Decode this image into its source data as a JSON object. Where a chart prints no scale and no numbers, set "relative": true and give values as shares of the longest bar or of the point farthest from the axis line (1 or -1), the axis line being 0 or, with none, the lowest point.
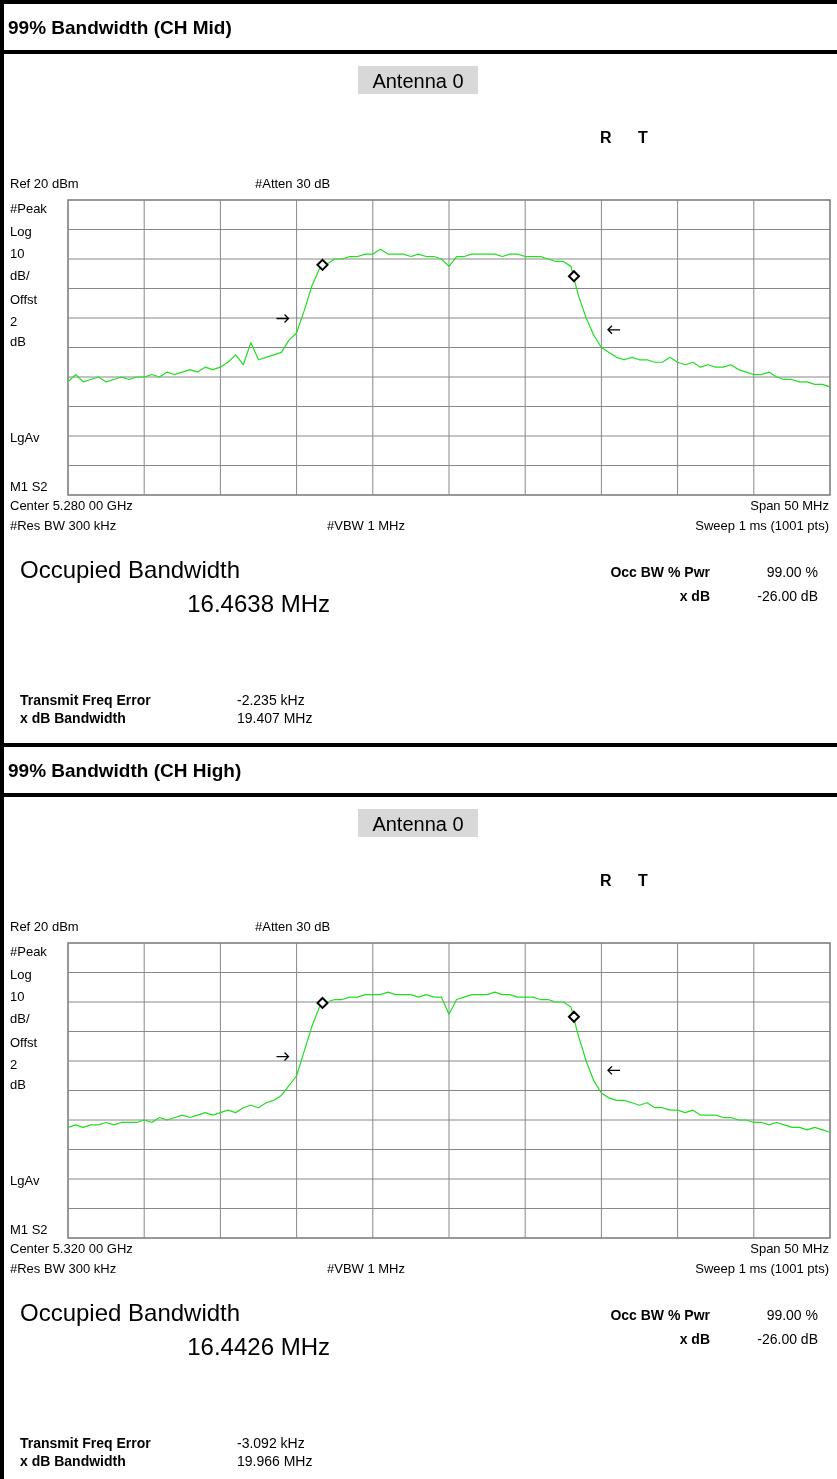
{
  "chart_data": [
    {
      "type": "line",
      "title": "99% Bandwidth (CH Mid)",
      "subtitle": "Antenna 0",
      "relative": true,
      "grid": true,
      "categories": [
        null,
        null,
        null,
        null,
        null,
        null,
        null,
        null,
        null,
        null,
        null,
        null,
        null,
        null,
        null,
        null,
        null,
        null,
        null,
        null,
        null,
        null,
        null,
        null,
        null,
        null,
        null,
        null,
        null,
        null,
        null,
        null,
        null,
        null,
        null,
        null,
        null,
        null,
        null,
        null,
        null,
        null,
        null,
        null,
        null,
        null,
        null,
        null,
        null,
        null,
        null,
        null,
        null,
        null,
        null,
        null,
        null,
        null,
        null,
        null,
        null,
        null,
        null,
        null,
        null,
        null,
        null,
        null,
        null,
        null,
        null,
        null,
        null,
        null,
        null,
        null,
        null,
        null,
        null,
        null,
        null,
        null,
        null,
        null,
        null,
        null,
        null,
        null,
        null,
        null,
        null,
        null,
        null,
        null,
        null,
        null,
        null,
        null,
        null,
        null,
        null
      ],
      "series": [
        {
          "color": "#22dd22",
          "values": [
            0.46,
            0.49,
            0.46,
            0.47,
            0.48,
            0.46,
            0.47,
            0.48,
            0.47,
            0.48,
            0.48,
            0.49,
            0.48,
            0.5,
            0.49,
            0.5,
            0.51,
            0.5,
            0.52,
            0.51,
            0.52,
            0.54,
            0.57,
            0.53,
            0.62,
            0.55,
            0.56,
            0.57,
            0.58,
            0.63,
            0.66,
            0.75,
            0.85,
            0.92,
            0.94,
            0.96,
            0.96,
            0.97,
            0.97,
            0.98,
            0.98,
            1,
            0.98,
            0.98,
            0.98,
            0.97,
            0.98,
            0.97,
            0.97,
            0.96,
            0.93,
            0.97,
            0.97,
            0.98,
            0.98,
            0.98,
            0.98,
            0.97,
            0.98,
            0.98,
            0.97,
            0.97,
            0.97,
            0.96,
            0.95,
            0.95,
            0.93,
            0.81,
            0.72,
            0.65,
            0.6,
            0.58,
            0.56,
            0.55,
            0.56,
            0.55,
            0.55,
            0.54,
            0.54,
            0.56,
            0.54,
            0.53,
            0.54,
            0.52,
            0.53,
            0.52,
            0.52,
            0.53,
            0.51,
            0.5,
            0.49,
            0.49,
            0.5,
            0.48,
            0.47,
            0.47,
            0.46,
            0.46,
            0.45,
            0.45,
            0.44
          ]
        }
      ],
      "annotations": [
        "R T",
        "Ref 20 dBm",
        "#Atten 30 dB",
        "#Peak",
        "Log",
        "10",
        "dB/",
        "Offst",
        "2",
        "dB",
        "LgAv",
        "M1 S2",
        "Center 5.280 00 GHz",
        "Span 50 MHz",
        "#Res BW 300 kHz",
        "#VBW 1 MHz",
        "Sweep 1 ms (1001 pts)",
        "Occupied Bandwidth",
        "16.4638 MHz",
        "Occ BW % Pwr",
        "99.00 %",
        "x dB",
        "-26.00 dB",
        "Transmit Freq Error",
        "-2.235 kHz",
        "x dB Bandwidth",
        "19.407 MHz"
      ]
    },
    {
      "type": "line",
      "title": "99% Bandwidth (CH High)",
      "subtitle": "Antenna 0",
      "relative": true,
      "grid": true,
      "categories": [
        null,
        null,
        null,
        null,
        null,
        null,
        null,
        null,
        null,
        null,
        null,
        null,
        null,
        null,
        null,
        null,
        null,
        null,
        null,
        null,
        null,
        null,
        null,
        null,
        null,
        null,
        null,
        null,
        null,
        null,
        null,
        null,
        null,
        null,
        null,
        null,
        null,
        null,
        null,
        null,
        null,
        null,
        null,
        null,
        null,
        null,
        null,
        null,
        null,
        null,
        null,
        null,
        null,
        null,
        null,
        null,
        null,
        null,
        null,
        null,
        null,
        null,
        null,
        null,
        null,
        null,
        null,
        null,
        null,
        null,
        null,
        null,
        null,
        null,
        null,
        null,
        null,
        null,
        null,
        null,
        null,
        null,
        null,
        null,
        null,
        null,
        null,
        null,
        null,
        null,
        null,
        null,
        null,
        null,
        null,
        null,
        null,
        null,
        null,
        null,
        null
      ],
      "series": [
        {
          "color": "#22dd22",
          "values": [
            0.45,
            0.46,
            0.45,
            0.46,
            0.46,
            0.47,
            0.46,
            0.47,
            0.47,
            0.47,
            0.48,
            0.47,
            0.49,
            0.48,
            0.49,
            0.5,
            0.49,
            0.5,
            0.51,
            0.5,
            0.51,
            0.52,
            0.51,
            0.53,
            0.54,
            0.53,
            0.55,
            0.56,
            0.58,
            0.62,
            0.66,
            0.76,
            0.86,
            0.94,
            0.96,
            0.97,
            0.97,
            0.98,
            0.98,
            0.99,
            0.99,
            0.99,
            1,
            0.99,
            0.99,
            0.99,
            0.98,
            0.99,
            0.98,
            0.98,
            0.91,
            0.97,
            0.98,
            0.99,
            0.99,
            0.99,
            1,
            0.99,
            0.99,
            0.98,
            0.98,
            0.98,
            0.97,
            0.97,
            0.96,
            0.96,
            0.94,
            0.82,
            0.72,
            0.64,
            0.59,
            0.57,
            0.56,
            0.56,
            0.55,
            0.54,
            0.55,
            0.53,
            0.53,
            0.52,
            0.52,
            0.51,
            0.52,
            0.5,
            0.5,
            0.5,
            0.49,
            0.49,
            0.48,
            0.48,
            0.47,
            0.47,
            0.46,
            0.47,
            0.46,
            0.45,
            0.45,
            0.44,
            0.45,
            0.44,
            0.43
          ]
        }
      ],
      "annotations": [
        "R T",
        "Ref 20 dBm",
        "#Atten 30 dB",
        "#Peak",
        "Log",
        "10",
        "dB/",
        "Offst",
        "2",
        "dB",
        "LgAv",
        "M1 S2",
        "Center 5.320 00 GHz",
        "Span 50 MHz",
        "#Res BW 300 kHz",
        "#VBW 1 MHz",
        "Sweep 1 ms (1001 pts)",
        "Occupied Bandwidth",
        "16.4426 MHz",
        "Occ BW % Pwr",
        "99.00 %",
        "x dB",
        "-26.00 dB",
        "Transmit Freq Error",
        "-3.092 kHz",
        "x dB Bandwidth",
        "19.966 MHz"
      ]
    }
  ]
}
